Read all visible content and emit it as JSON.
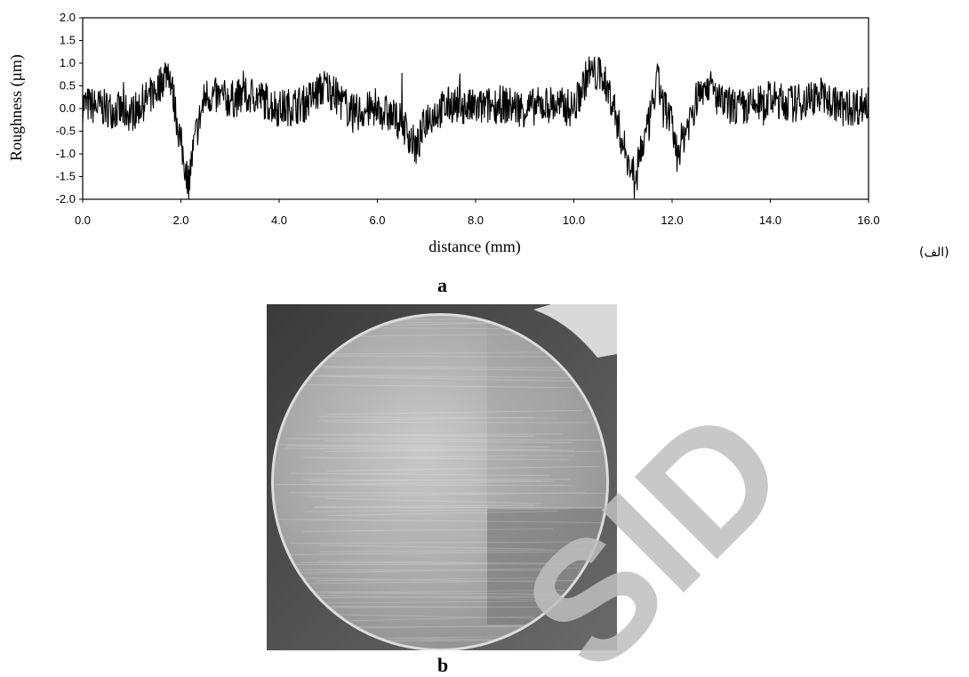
{
  "figure": {
    "panel_a_label": "a",
    "panel_b_label": "b",
    "persian_label": "(الف)",
    "watermark_text": "SID"
  },
  "chart_data": {
    "type": "line",
    "xlabel": "distance (mm)",
    "ylabel": "Roughness (µm)",
    "xlim": [
      0,
      16
    ],
    "ylim": [
      -2,
      2
    ],
    "x_ticks": [
      "0.0",
      "2.0",
      "4.0",
      "6.0",
      "8.0",
      "10.0",
      "12.0",
      "14.0",
      "16.0"
    ],
    "y_ticks": [
      "2.0",
      "1.5",
      "1.0",
      "0.5",
      "0.0",
      "-0.5",
      "-1.0",
      "-1.5",
      "-2.0"
    ],
    "grid": false,
    "series": [
      {
        "x": [
          0.0,
          0.5,
          1.0,
          1.5,
          1.75,
          2.0,
          2.15,
          2.3,
          2.5,
          3.0,
          3.5,
          4.0,
          4.5,
          4.95,
          5.5,
          6.0,
          6.5,
          6.8,
          7.0,
          7.5,
          8.0,
          8.5,
          9.0,
          9.5,
          10.0,
          10.3,
          10.6,
          10.8,
          11.0,
          11.2,
          11.5,
          11.7,
          12.0,
          12.1,
          12.5,
          12.7,
          13.0,
          13.5,
          14.0,
          14.5,
          15.0,
          15.5,
          16.0
        ],
        "y": [
          0.1,
          0.0,
          -0.1,
          0.4,
          0.9,
          -0.8,
          -1.6,
          -0.6,
          0.3,
          0.2,
          0.3,
          0.0,
          0.1,
          0.5,
          -0.1,
          0.0,
          -0.3,
          -0.9,
          -0.2,
          0.1,
          0.0,
          0.1,
          0.0,
          0.1,
          0.0,
          0.8,
          0.7,
          0.1,
          -0.8,
          -1.4,
          -0.5,
          0.6,
          -0.4,
          -1.0,
          0.2,
          0.6,
          0.1,
          0.0,
          0.2,
          0.1,
          0.3,
          0.0,
          0.1
        ],
        "color": "#000000"
      }
    ]
  }
}
